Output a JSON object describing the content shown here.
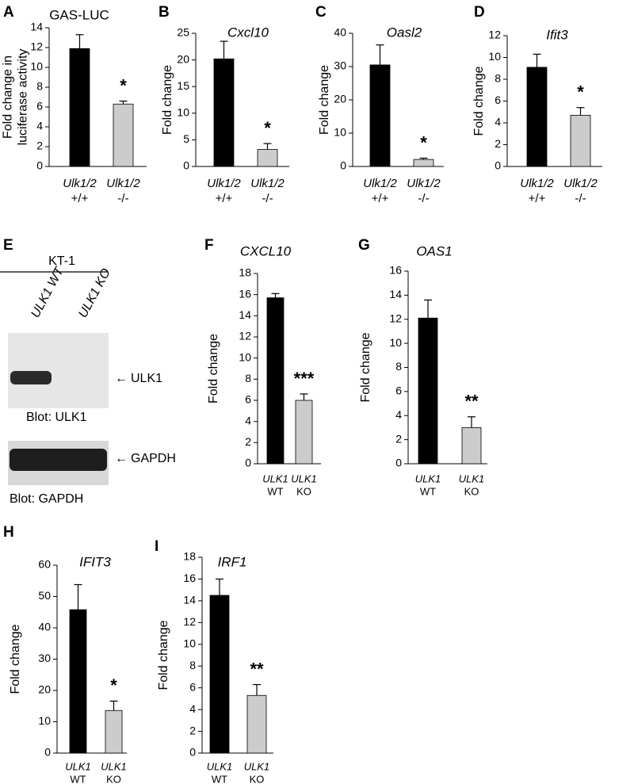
{
  "chart_data": [
    {
      "type": "bar",
      "panel": "A",
      "title": "GAS-LUC",
      "title_italic": false,
      "ylabel": [
        "Fold change in",
        "luciferase activity"
      ],
      "categories": [
        [
          "Ulk1/2",
          "+/+"
        ],
        [
          "Ulk1/2",
          "-/-"
        ]
      ],
      "values": [
        11.9,
        6.3
      ],
      "errors": [
        1.4,
        0.3
      ],
      "colors": [
        "#000000",
        "#cccccc"
      ],
      "ylim": [
        0,
        14
      ],
      "yticks": [
        0,
        2,
        4,
        6,
        8,
        10,
        12,
        14
      ],
      "annotation": "*"
    },
    {
      "type": "bar",
      "panel": "B",
      "title": "Cxcl10",
      "title_italic": true,
      "ylabel": [
        "Fold change"
      ],
      "categories": [
        [
          "Ulk1/2",
          "+/+"
        ],
        [
          "Ulk1/2",
          "-/-"
        ]
      ],
      "values": [
        20.2,
        3.2
      ],
      "errors": [
        3.3,
        1.1
      ],
      "colors": [
        "#000000",
        "#cccccc"
      ],
      "ylim": [
        0,
        25
      ],
      "yticks": [
        0,
        5,
        10,
        15,
        20,
        25
      ],
      "annotation": "*"
    },
    {
      "type": "bar",
      "panel": "C",
      "title": "Oasl2",
      "title_italic": true,
      "ylabel": [
        "Fold change"
      ],
      "categories": [
        [
          "Ulk1/2",
          "+/+"
        ],
        [
          "Ulk1/2",
          "-/-"
        ]
      ],
      "values": [
        30.5,
        2.1
      ],
      "errors": [
        6.0,
        0.4
      ],
      "colors": [
        "#000000",
        "#cccccc"
      ],
      "ylim": [
        0,
        40
      ],
      "yticks": [
        0,
        10,
        20,
        30,
        40
      ],
      "annotation": "*"
    },
    {
      "type": "bar",
      "panel": "D",
      "title": "Ifit3",
      "title_italic": true,
      "ylabel": [
        "Fold change"
      ],
      "categories": [
        [
          "Ulk1/2",
          "+/+"
        ],
        [
          "Ulk1/2",
          "-/-"
        ]
      ],
      "values": [
        9.1,
        4.7
      ],
      "errors": [
        1.2,
        0.7
      ],
      "colors": [
        "#000000",
        "#cccccc"
      ],
      "ylim": [
        0,
        12
      ],
      "yticks": [
        0,
        2,
        4,
        6,
        8,
        10,
        12
      ],
      "annotation": "*"
    },
    {
      "type": "bar",
      "panel": "F",
      "title": "CXCL10",
      "title_italic": true,
      "ylabel": [
        "Fold change"
      ],
      "categories": [
        [
          "ULK1",
          "WT"
        ],
        [
          "ULK1",
          "KO"
        ]
      ],
      "values": [
        15.7,
        6.0
      ],
      "errors": [
        0.4,
        0.6
      ],
      "colors": [
        "#000000",
        "#cccccc"
      ],
      "ylim": [
        0,
        18
      ],
      "yticks": [
        0,
        2,
        4,
        6,
        8,
        10,
        12,
        14,
        16,
        18
      ],
      "annotation": "***"
    },
    {
      "type": "bar",
      "panel": "G",
      "title": "OAS1",
      "title_italic": true,
      "ylabel": [
        "Fold change"
      ],
      "categories": [
        [
          "ULK1",
          "WT"
        ],
        [
          "ULK1",
          "KO"
        ]
      ],
      "values": [
        12.1,
        3.0
      ],
      "errors": [
        1.5,
        0.9
      ],
      "colors": [
        "#000000",
        "#cccccc"
      ],
      "ylim": [
        0,
        16
      ],
      "yticks": [
        0,
        2,
        4,
        6,
        8,
        10,
        12,
        14,
        16
      ],
      "annotation": "**"
    },
    {
      "type": "bar",
      "panel": "H",
      "title": "IFIT3",
      "title_italic": true,
      "ylabel": [
        "Fold change"
      ],
      "categories": [
        [
          "ULK1",
          "WT"
        ],
        [
          "ULK1",
          "KO"
        ]
      ],
      "values": [
        45.8,
        13.6
      ],
      "errors": [
        8.0,
        3.0
      ],
      "colors": [
        "#000000",
        "#cccccc"
      ],
      "ylim": [
        0,
        60
      ],
      "yticks": [
        0,
        10,
        20,
        30,
        40,
        50,
        60
      ],
      "annotation": "*"
    },
    {
      "type": "bar",
      "panel": "I",
      "title": "IRF1",
      "title_italic": true,
      "ylabel": [
        "Fold change"
      ],
      "categories": [
        [
          "ULK1",
          "WT"
        ],
        [
          "ULK1",
          "KO"
        ]
      ],
      "values": [
        14.5,
        5.3
      ],
      "errors": [
        1.5,
        1.0
      ],
      "colors": [
        "#000000",
        "#cccccc"
      ],
      "ylim": [
        0,
        18
      ],
      "yticks": [
        0,
        2,
        4,
        6,
        8,
        10,
        12,
        14,
        16,
        18
      ],
      "annotation": "**"
    }
  ],
  "blot": {
    "panel": "E",
    "cell_line": "KT-1",
    "lanes": [
      "ULK1 WT",
      "ULK1 KO"
    ],
    "bands": [
      "ULK1",
      "GAPDH"
    ],
    "captions": [
      "Blot: ULK1",
      "Blot: GAPDH"
    ]
  }
}
